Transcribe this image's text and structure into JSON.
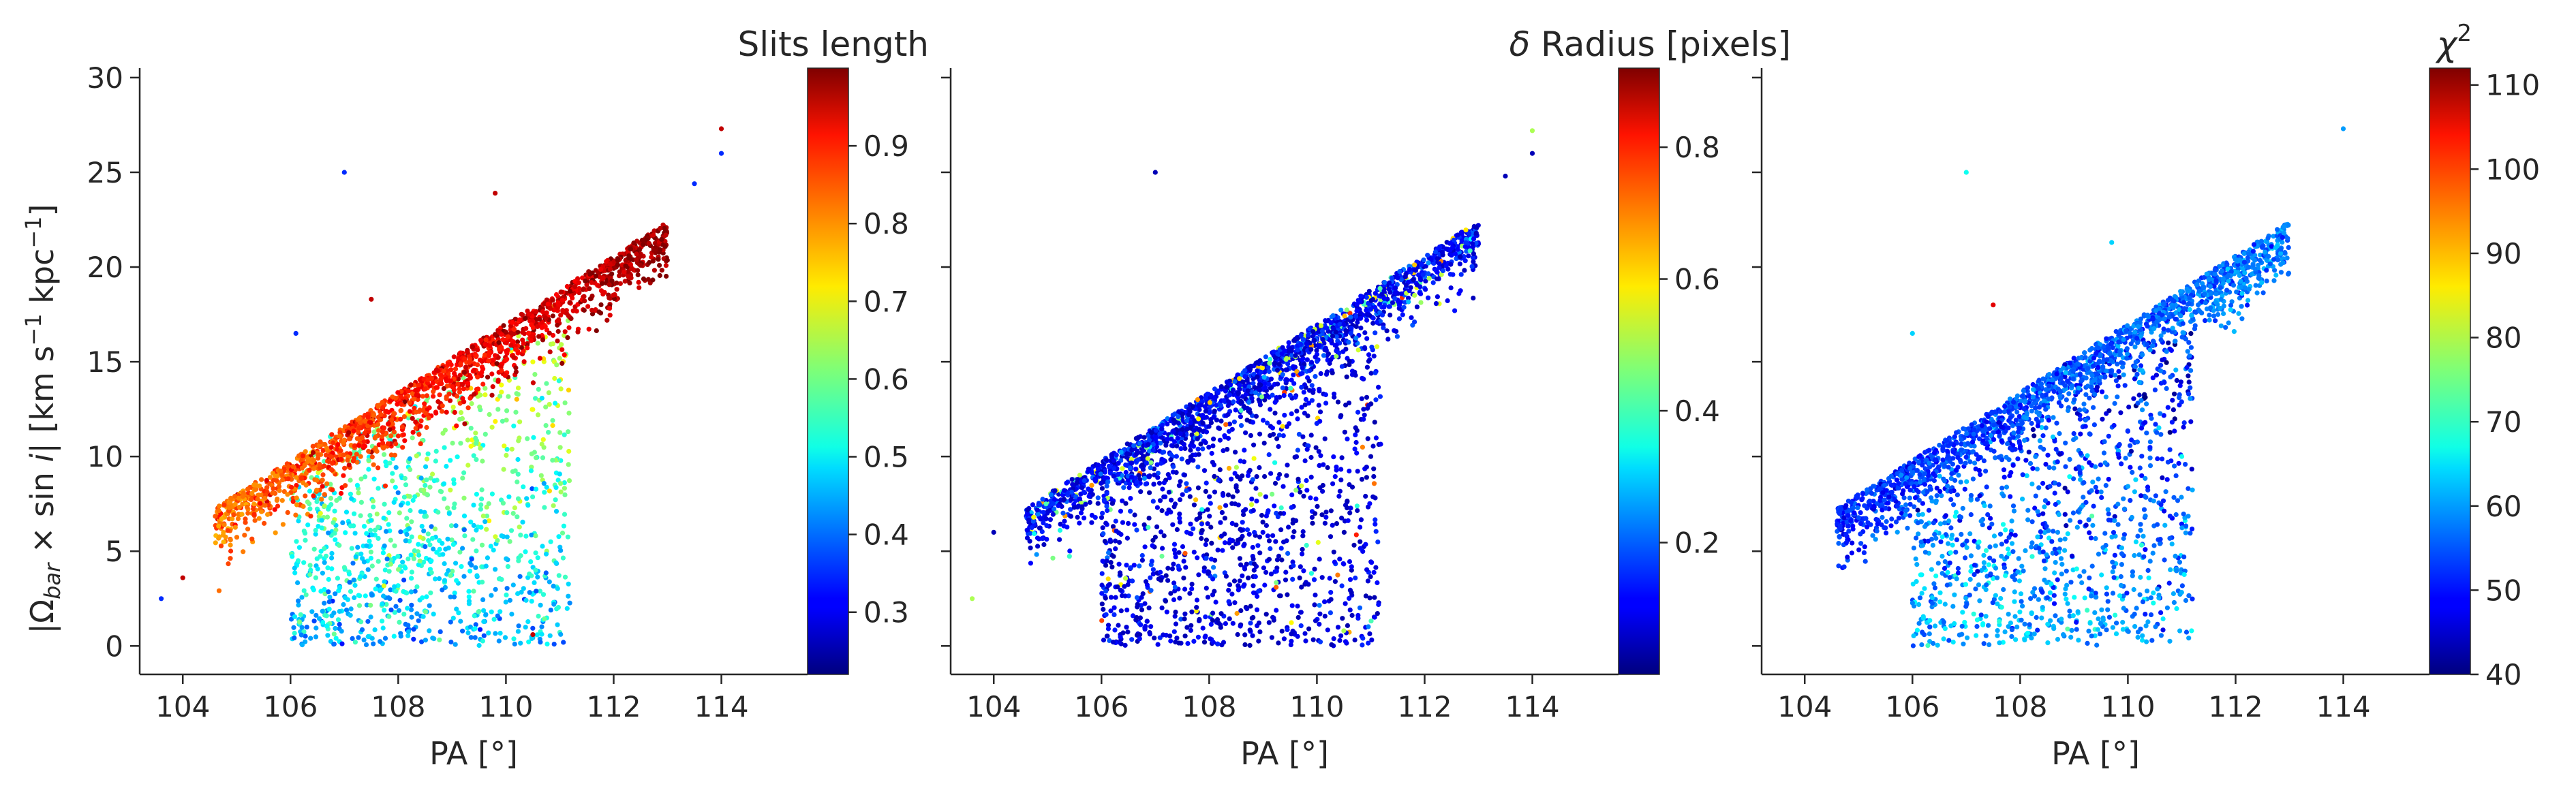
{
  "figure": {
    "ylabel_parts": [
      "|Ω",
      "bar",
      " × sin ",
      "i",
      "|   [km s",
      "−1",
      " kpc",
      "−1",
      "]"
    ]
  },
  "chart_data": [
    {
      "type": "scatter",
      "xlabel": "PA [°]",
      "ylabel": "|Ω_bar × sin i|   [km s^-1 kpc^-1]",
      "x_ticks": [
        "104",
        "106",
        "108",
        "110",
        "112",
        "114"
      ],
      "y_ticks": [
        "0",
        "5",
        "10",
        "15",
        "20",
        "25",
        "30"
      ],
      "xlim": [
        103.2,
        115.6
      ],
      "ylim": [
        -1.5,
        30.5
      ],
      "colorbar": {
        "title": "Slits length",
        "colormap": "jet",
        "range": [
          0.22,
          1.0
        ],
        "ticks": [
          "0.3",
          "0.4",
          "0.5",
          "0.6",
          "0.7",
          "0.8",
          "0.9"
        ]
      },
      "structure": {
        "upper_ridge": "PA 104.5-113 from |Ω| 6 to 23, high color values (0.8-1.0)",
        "lower_fan": "PA 106-111, |Ω| 0-20, medium-low color values (0.45-0.7)",
        "outliers": [
          [
            103.6,
            2.5
          ],
          [
            104.0,
            3.6
          ],
          [
            107.0,
            25.0
          ],
          [
            109.8,
            23.9
          ],
          [
            113.5,
            24.4
          ],
          [
            114.0,
            27.3
          ],
          [
            114.0,
            26.0
          ],
          [
            107.5,
            18.3
          ],
          [
            106.1,
            16.5
          ],
          [
            110.5,
            0.6
          ]
        ]
      }
    },
    {
      "type": "scatter",
      "xlabel": "PA [°]",
      "x_ticks": [
        "104",
        "106",
        "108",
        "110",
        "112",
        "114"
      ],
      "xlim": [
        103.2,
        115.6
      ],
      "ylim": [
        -1.5,
        30.5
      ],
      "colorbar": {
        "title_symbol": "δ",
        "title": " Radius [pixels]",
        "colormap": "jet",
        "range": [
          0.0,
          0.92
        ],
        "ticks": [
          "0.2",
          "0.4",
          "0.6",
          "0.8"
        ]
      },
      "structure": {
        "upper_ridge": "PA 104.5-113, mostly low color values (0.02-0.2) with scattered cyan/green points",
        "lower_fan": "PA 106-111, |Ω| 1-20, low color values",
        "outliers": [
          [
            103.6,
            2.5
          ],
          [
            104.0,
            6.0
          ],
          [
            107.0,
            25.0
          ],
          [
            114.0,
            27.2
          ],
          [
            114.0,
            26.0
          ],
          [
            113.5,
            24.8
          ],
          [
            110.5,
            0.8
          ],
          [
            111.0,
            10.0
          ]
        ]
      }
    },
    {
      "type": "scatter",
      "xlabel": "PA [°]",
      "x_ticks": [
        "104",
        "106",
        "108",
        "110",
        "112",
        "114"
      ],
      "xlim": [
        103.2,
        115.6
      ],
      "ylim": [
        -1.5,
        30.5
      ],
      "colorbar": {
        "title": "χ",
        "title_sup": "2",
        "colormap": "jet",
        "range": [
          40,
          112
        ],
        "ticks": [
          "40",
          "50",
          "60",
          "70",
          "80",
          "90",
          "100",
          "110"
        ]
      },
      "structure": {
        "upper_ridge": "PA 104.5-113, color values 50-62",
        "lower_fan": "PA 106-111, |Ω| 1-20, color values 45-70",
        "outliers": [
          [
            107.5,
            18.0
          ],
          [
            106.0,
            16.5
          ],
          [
            107.0,
            25.0
          ],
          [
            114.0,
            27.3
          ],
          [
            109.7,
            21.3
          ],
          [
            111.0,
            10.0
          ],
          [
            108.8,
            0.6
          ],
          [
            109.3,
            1.2
          ]
        ]
      }
    }
  ]
}
